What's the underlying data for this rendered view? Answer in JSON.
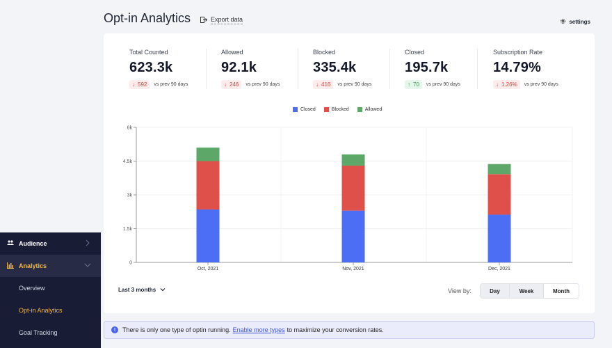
{
  "header": {
    "title": "Opt-in Analytics",
    "export_label": "Export data",
    "settings_label": "settings"
  },
  "sidebar": {
    "items": [
      {
        "label": "Audience",
        "icon": "people-icon",
        "chevron": "right"
      },
      {
        "label": "Analytics",
        "icon": "bar-chart-icon",
        "chevron": "down"
      }
    ],
    "subitems": [
      {
        "label": "Overview"
      },
      {
        "label": "Opt-in Analytics"
      },
      {
        "label": "Goal Tracking"
      }
    ],
    "active_color": "#f5b942"
  },
  "stats": [
    {
      "label": "Total Counted",
      "value": "623.3k",
      "change": "592",
      "direction": "down",
      "compare": "vs prev 90 days"
    },
    {
      "label": "Allowed",
      "value": "92.1k",
      "change": "246",
      "direction": "down",
      "compare": "vs prev 90 days"
    },
    {
      "label": "Blocked",
      "value": "335.4k",
      "change": "416",
      "direction": "down",
      "compare": "vs prev 90 days"
    },
    {
      "label": "Closed",
      "value": "195.7k",
      "change": "70",
      "direction": "up",
      "compare": "vs prev 90 days"
    },
    {
      "label": "Subscription Rate",
      "value": "14.79%",
      "change": "1.26%",
      "direction": "down",
      "compare": "vs prev 90 days"
    }
  ],
  "chart_data": {
    "type": "bar",
    "stacked": true,
    "categories": [
      "Oct, 2021",
      "Nov, 2021",
      "Dec, 2021"
    ],
    "series": [
      {
        "name": "Closed",
        "color": "#4c6ef5",
        "values": [
          2350,
          2300,
          2120
        ]
      },
      {
        "name": "Blocked",
        "color": "#e0504b",
        "values": [
          2150,
          2000,
          1800
        ]
      },
      {
        "name": "Allowed",
        "color": "#5da868",
        "values": [
          600,
          500,
          450
        ]
      }
    ],
    "ylim": [
      0,
      6000
    ],
    "yticks": [
      0,
      1500,
      3000,
      4500,
      6000
    ],
    "ytick_labels": [
      "0",
      "1.5k",
      "3k",
      "4.5k",
      "6k"
    ],
    "grid": true,
    "legend_position": "top-center"
  },
  "controls": {
    "range_label": "Last 3 months",
    "view_by_label": "View by:",
    "view_options": [
      "Day",
      "Week",
      "Month"
    ],
    "selected_view": "Month"
  },
  "notice": {
    "text_before": "There is only one type of optin running.",
    "link_text": "Enable more types",
    "text_after": "to maximize your conversion rates."
  }
}
